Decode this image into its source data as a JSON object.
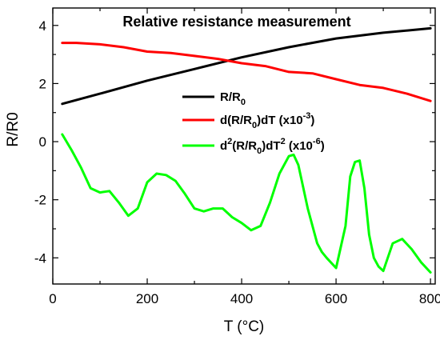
{
  "chart_data": {
    "type": "line",
    "title": "Relative resistance measurement",
    "xlabel": "T (°C)",
    "ylabel": "R/R0",
    "xlim": [
      0,
      810
    ],
    "ylim": [
      -4.9,
      4.6
    ],
    "x_ticks": [
      0,
      200,
      400,
      600,
      800
    ],
    "y_ticks": [
      -4,
      -2,
      0,
      2,
      4
    ],
    "grid": false,
    "legend_position": "top-right",
    "series": [
      {
        "name": "R/R0",
        "color": "#000000",
        "x": [
          20,
          100,
          200,
          300,
          400,
          500,
          600,
          700,
          800
        ],
        "y": [
          1.3,
          1.65,
          2.1,
          2.5,
          2.9,
          3.25,
          3.55,
          3.75,
          3.9
        ]
      },
      {
        "name": "d(R/R0)dT (x10-3)",
        "color": "#ff0000",
        "x": [
          20,
          50,
          100,
          150,
          200,
          250,
          300,
          350,
          400,
          450,
          500,
          550,
          600,
          650,
          700,
          750,
          800
        ],
        "y": [
          3.4,
          3.4,
          3.35,
          3.25,
          3.1,
          3.05,
          2.95,
          2.85,
          2.7,
          2.6,
          2.4,
          2.35,
          2.15,
          1.95,
          1.85,
          1.65,
          1.4
        ]
      },
      {
        "name": "d2(R/R0)dT2 (x10-6)",
        "color": "#00ff00",
        "x": [
          20,
          40,
          60,
          80,
          100,
          120,
          140,
          160,
          180,
          200,
          220,
          240,
          260,
          280,
          300,
          320,
          340,
          360,
          380,
          400,
          420,
          440,
          460,
          480,
          500,
          510,
          520,
          540,
          560,
          570,
          580,
          600,
          620,
          630,
          640,
          650,
          660,
          670,
          680,
          690,
          700,
          720,
          740,
          760,
          780,
          800
        ],
        "y": [
          0.25,
          -0.3,
          -0.9,
          -1.6,
          -1.75,
          -1.7,
          -2.1,
          -2.55,
          -2.3,
          -1.4,
          -1.1,
          -1.15,
          -1.35,
          -1.8,
          -2.3,
          -2.4,
          -2.3,
          -2.3,
          -2.6,
          -2.8,
          -3.05,
          -2.9,
          -2.1,
          -1.1,
          -0.5,
          -0.45,
          -0.8,
          -2.3,
          -3.5,
          -3.8,
          -4.0,
          -4.35,
          -2.9,
          -1.2,
          -0.7,
          -0.65,
          -1.6,
          -3.2,
          -4.0,
          -4.3,
          -4.45,
          -3.5,
          -3.35,
          -3.7,
          -4.15,
          -4.5
        ]
      }
    ]
  }
}
